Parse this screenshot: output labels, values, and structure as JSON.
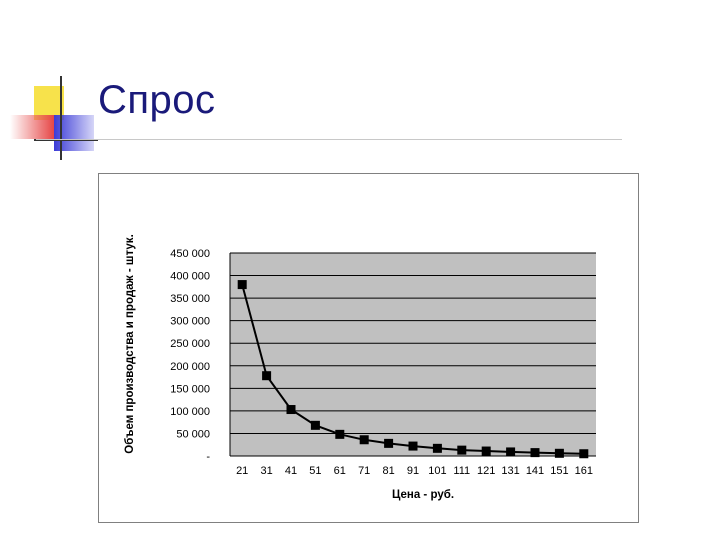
{
  "slide": {
    "title": "Спрос"
  },
  "chart_data": {
    "type": "line",
    "title": "",
    "xlabel": "Цена - руб.",
    "ylabel": "Объем производства и продаж - штук.",
    "categories": [
      "21",
      "31",
      "41",
      "51",
      "61",
      "71",
      "81",
      "91",
      "101",
      "111",
      "121",
      "131",
      "141",
      "151",
      "161"
    ],
    "series": [
      {
        "values": [
          380000,
          178000,
          103000,
          68000,
          48000,
          36000,
          28000,
          22000,
          17000,
          13000,
          11000,
          9000,
          7500,
          6000,
          5000
        ]
      }
    ],
    "ylim": [
      0,
      450000
    ],
    "y_ticks": [
      {
        "value": 0,
        "label": "-"
      },
      {
        "value": 50000,
        "label": "50 000"
      },
      {
        "value": 100000,
        "label": "100 000"
      },
      {
        "value": 150000,
        "label": "150 000"
      },
      {
        "value": 200000,
        "label": "200 000"
      },
      {
        "value": 250000,
        "label": "250 000"
      },
      {
        "value": 300000,
        "label": "300 000"
      },
      {
        "value": 350000,
        "label": "350 000"
      },
      {
        "value": 400000,
        "label": "400 000"
      },
      {
        "value": 450000,
        "label": "450 000"
      }
    ],
    "grid": true,
    "legend": "none",
    "colors": {
      "plot_background": "#c0c0c0",
      "line": "#000000",
      "marker": "#000000",
      "gridline": "#000000"
    }
  }
}
